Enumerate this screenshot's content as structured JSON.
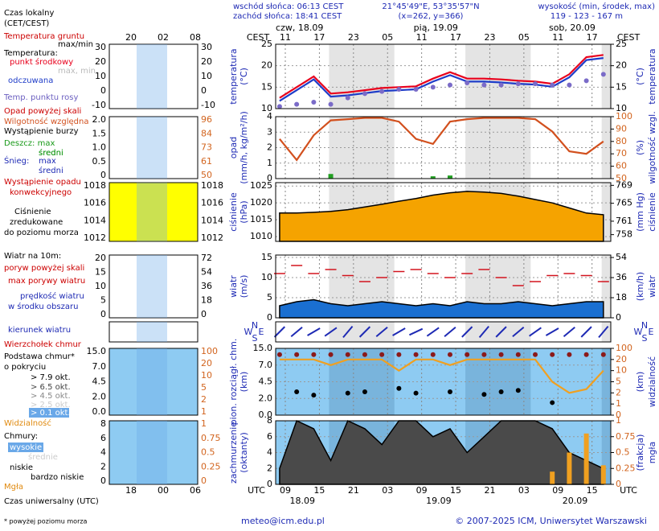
{
  "header": {
    "sunrise": "wschód słońca: 06:13 CEST",
    "sunset": "zachód słońca: 18:41 CEST",
    "coords": "21°45'49\"E, 53°35'57\"N",
    "grid": "(x=262, y=366)",
    "height_title": "wysokość (min, środek, max)",
    "height": "119 - 123 - 167 m"
  },
  "time_axis": {
    "top_label": "CEST",
    "bottom_label": "UTC",
    "xlim": [
      7.3,
      66.3
    ],
    "x": [
      8,
      11,
      14,
      17,
      20,
      23,
      26,
      29,
      32,
      35,
      38,
      41,
      44,
      47,
      50,
      53,
      56,
      59,
      62,
      65
    ],
    "utc_ticks": [
      {
        "value": 9,
        "label": "09"
      },
      15,
      21,
      {
        "value": 27,
        "label": "03"
      },
      {
        "value": 33,
        "label": "09"
      },
      {
        "value": 39,
        "label": "15"
      },
      {
        "value": 45,
        "label": "21"
      },
      {
        "value": 51,
        "label": "03"
      },
      {
        "value": 57,
        "label": "09"
      },
      {
        "value": 63,
        "label": "15"
      }
    ],
    "cest_ticks": [
      {
        "value": 9,
        "label": "11"
      },
      {
        "value": 15,
        "label": "17"
      },
      {
        "value": 21,
        "label": "23"
      },
      {
        "value": 27,
        "label": "05"
      },
      {
        "value": 33,
        "label": "11"
      },
      {
        "value": 39,
        "label": "17"
      },
      {
        "value": 45,
        "label": "23"
      },
      {
        "value": 51,
        "label": "05"
      },
      {
        "value": 57,
        "label": "11"
      },
      {
        "value": 63,
        "label": "17"
      }
    ],
    "days": [
      "czw, 18.09",
      "pią, 19.09",
      "sob, 20.09"
    ],
    "dates": [
      "18.09",
      "19.09",
      "20.09"
    ]
  },
  "chart_data": [
    {
      "type": "line",
      "ylabel": [
        "temperatura",
        "(°C)"
      ],
      "y2label": [
        "temperatura",
        "(°C)"
      ],
      "background": "#ffffff",
      "ylim": [
        10,
        25
      ],
      "yticks": [
        10,
        15,
        20,
        25
      ],
      "y2lim": [
        10,
        25
      ],
      "y2ticks": [
        10,
        15,
        20,
        25
      ],
      "series": [
        {
          "name": "punkt środkowy",
          "color": "#e8001c",
          "kind": "line",
          "values": [
            12.5,
            15,
            17.5,
            13.5,
            13.8,
            14.3,
            14.8,
            15,
            15.2,
            17,
            18.5,
            17,
            17,
            16.8,
            16.5,
            16.3,
            15.8,
            18,
            22,
            22.5
          ]
        },
        {
          "name": "odczuwana",
          "color": "#1e3cc8",
          "kind": "line",
          "values": [
            11.8,
            14.3,
            16.8,
            12.8,
            13.1,
            13.6,
            14.1,
            14.3,
            14.5,
            16.3,
            17.8,
            16.3,
            16.3,
            16.1,
            15.8,
            15.6,
            15.1,
            17.3,
            21.3,
            21.8
          ]
        },
        {
          "name": "Temp. punktu rosy",
          "color": "#7a6bc8",
          "kind": "dots",
          "values": [
            10.5,
            11,
            11.5,
            11,
            12.5,
            13.5,
            14,
            14.5,
            14.5,
            15,
            15.5,
            16,
            15.5,
            15.5,
            15.8,
            15.8,
            15.5,
            15.5,
            16.5,
            18
          ]
        }
      ]
    },
    {
      "type": "line",
      "ylabel": [
        "opad",
        "(mm/h, kg/m²/h)"
      ],
      "y2label": [
        "wilgotność wzgl.",
        "(%)"
      ],
      "background": "#ffffff",
      "ylim": [
        0,
        4
      ],
      "yticks": [
        0,
        1,
        2,
        3,
        4
      ],
      "y2lim": [
        50,
        100
      ],
      "y2ticks": [
        50,
        60,
        70,
        80,
        90,
        100
      ],
      "series": [
        {
          "name": "Wilgotność względna",
          "color": "#d2501e",
          "kind": "line",
          "axis": "y2",
          "values": [
            82,
            65,
            85,
            97,
            98,
            99,
            99,
            96,
            82,
            78,
            96,
            98,
            99,
            99,
            99,
            98,
            88,
            72,
            70,
            80
          ]
        },
        {
          "name": "średni",
          "color": "#22a022",
          "kind": "bars",
          "values": [
            0,
            0,
            0,
            0.3,
            0,
            0,
            0,
            0,
            0,
            0.15,
            0.2,
            0,
            0,
            0,
            0,
            0,
            0,
            0,
            0,
            0
          ]
        }
      ]
    },
    {
      "type": "line",
      "ylabel": [
        "ciśnienie",
        "(hPa)"
      ],
      "y2label": [
        "ciśnienie",
        "(mm Hg)"
      ],
      "background": "#ffffff",
      "ylim": [
        1008.6,
        1026
      ],
      "yticks": [
        1010,
        1015,
        1020,
        1025
      ],
      "y2lim": [
        756.5,
        769.6
      ],
      "y2ticks": [
        758,
        761,
        765,
        769
      ],
      "series": [
        {
          "color": "#f5a300",
          "kind": "area",
          "values": [
            1017,
            1017,
            1017.2,
            1017.5,
            1018,
            1018.8,
            1019.6,
            1020.5,
            1021.3,
            1022.3,
            1023,
            1023.4,
            1023.2,
            1022.8,
            1022,
            1021,
            1020,
            1018.5,
            1017,
            1016.5
          ]
        }
      ]
    },
    {
      "type": "line",
      "ylabel": [
        "wiatr",
        "(m/s)"
      ],
      "y2label": [
        "wiatr",
        "(km/h)"
      ],
      "background": "#ffffff",
      "ylim": [
        0,
        15.6
      ],
      "yticks": [
        0,
        5,
        10,
        15
      ],
      "y2lim": [
        0,
        56.2
      ],
      "y2ticks": [
        0,
        18,
        36,
        54
      ],
      "series": [
        {
          "name": "max porywy wiatru",
          "color": "#d2141e",
          "kind": "dashes",
          "values": [
            11,
            13,
            11,
            12,
            10.5,
            9,
            10,
            11.5,
            12,
            11,
            10,
            11,
            12,
            10,
            8,
            9,
            10.5,
            11,
            10.5,
            9
          ]
        },
        {
          "name": "prędkość wiatru",
          "color": "#1a6fd1",
          "kind": "area",
          "values": [
            3,
            4,
            4.5,
            3.5,
            3,
            3.5,
            4,
            3.5,
            3,
            3.5,
            3,
            4,
            3.5,
            3.5,
            4,
            3.5,
            3,
            3.5,
            4,
            4
          ]
        }
      ]
    },
    {
      "type": "arrows",
      "compass": [
        "W",
        "N",
        "E",
        "S"
      ],
      "color": "#1e2ab4",
      "values": [
        225,
        230,
        240,
        235,
        220,
        225,
        230,
        240,
        245,
        235,
        230,
        225,
        220,
        225,
        230,
        235,
        240,
        230,
        225,
        220
      ]
    },
    {
      "type": "line",
      "ylabel": [
        "pion. rozciągł. chm.",
        "(km)"
      ],
      "y2label": [
        "widzialność",
        "(km)"
      ],
      "background": "#8ecbf2",
      "yscale": "ticks",
      "ylim": [
        0,
        15
      ],
      "yticks": [
        {
          "value": 0,
          "label": "0.0"
        },
        {
          "value": 2,
          "label": "2.0"
        },
        4.5,
        {
          "value": 7,
          "label": "7.0"
        },
        {
          "value": 15,
          "label": "15.0"
        }
      ],
      "y2lim": [
        0,
        100
      ],
      "y2ticks": [
        0,
        1,
        2,
        5,
        10,
        20,
        100
      ],
      "series": [
        {
          "name": "Wierzchołek chmur",
          "color": "#8b1a1a",
          "kind": "dots",
          "values": [
            12,
            12,
            12,
            12,
            12,
            12,
            12,
            12,
            12,
            12,
            12,
            12,
            12,
            12,
            12,
            12,
            12,
            12,
            12,
            12
          ]
        },
        {
          "name": "> 7.9 okt.",
          "color": "#000000",
          "kind": "dots",
          "values": [
            null,
            3,
            2.5,
            null,
            2.8,
            3,
            null,
            3.5,
            2.8,
            null,
            3,
            null,
            2.6,
            3,
            3.2,
            null,
            1.5,
            null,
            null,
            null
          ]
        },
        {
          "name": "Widzialność",
          "color": "#f0a020",
          "kind": "line",
          "axis": "y2",
          "values": [
            20,
            20,
            20,
            15,
            20,
            20,
            20,
            10,
            20,
            20,
            15,
            20,
            20,
            20,
            20,
            20,
            5,
            2,
            3,
            10
          ]
        }
      ]
    },
    {
      "type": "line",
      "ylabel": [
        "zachmurzenie",
        "(oktanty)"
      ],
      "y2label": [
        "mgła",
        "(frakcja)"
      ],
      "background": "#8ecbf2",
      "ylim": [
        0,
        8
      ],
      "yticks": [
        0,
        2,
        4,
        6,
        8
      ],
      "y2lim": [
        0,
        1
      ],
      "y2ticks": [
        0,
        0.25,
        0.5,
        0.75,
        1
      ],
      "series": [
        {
          "color": "#4a4a4a",
          "kind": "area",
          "values": [
            2,
            8,
            7,
            3,
            8,
            7,
            5,
            8,
            8,
            6,
            7,
            4,
            6,
            8,
            8,
            8,
            7,
            4,
            3,
            2
          ]
        },
        {
          "name": "Mgła",
          "color": "#f0a020",
          "kind": "bars",
          "axis": "y2",
          "values": [
            0,
            0,
            0,
            0,
            0,
            0,
            0,
            0,
            0,
            0,
            0,
            0,
            0,
            0,
            0,
            0,
            0.2,
            0.5,
            0.8,
            0.3
          ]
        }
      ]
    }
  ],
  "left_legend": [
    "Czas lokalny",
    "(CET/CEST)",
    "Temperatura gruntu",
    "max/min",
    "Temperatura:",
    "max, min",
    "Opad powyżej skali",
    "Wystąpienie burzy",
    "Deszcz: max",
    "średni",
    "Śnieg:",
    "max",
    "średni",
    "Wystąpienie opadu",
    "konwekcyjnego",
    "Ciśnienie",
    "zredukowane",
    "do poziomu morza",
    "Wiatr na 10m:",
    "poryw powyżej skali",
    "w środku obszaru",
    "kierunek wiatru",
    "Podstawa chmur*",
    "o pokryciu",
    "> 6.5 okt.",
    "> 4.5 okt.",
    "> 2.5 okt.",
    "> 0.1 okt.",
    "Chmury:",
    "wysokie",
    "średnie",
    "niskie",
    "bardzo niskie",
    "Czas uniwersalny (UTC)"
  ],
  "left_panels": {
    "top_ticks": [
      "20",
      "02",
      "08"
    ],
    "bottom_ticks": [
      "18",
      "00",
      "06"
    ],
    "panels": [
      {
        "left": [
          "30",
          "20",
          "10",
          "0",
          "-10"
        ],
        "right": [
          "30",
          "20",
          "10",
          "0",
          "-10"
        ]
      },
      {
        "left": [
          "2.0",
          "1.5",
          "1.0",
          "0.5",
          "0"
        ],
        "right": [
          "96",
          "84",
          "73",
          "61",
          "50"
        ]
      },
      {
        "left": [
          "1018",
          "1016",
          "1014",
          "1012"
        ],
        "right": [
          "1018",
          "1016",
          "1014",
          "1012"
        ]
      },
      {
        "left": [
          "20",
          "15",
          "10",
          "5",
          "0"
        ],
        "right": [
          "72",
          "54",
          "36",
          "18",
          "0"
        ]
      },
      {
        "left": [],
        "right": []
      },
      {
        "left": [
          "15.0",
          "7.0",
          "4.5",
          "2.0",
          "0.0"
        ],
        "right": [
          "100",
          "20",
          "10",
          "5",
          "2",
          "1"
        ]
      },
      {
        "left": [
          "8",
          "6",
          "4",
          "2",
          "0"
        ],
        "right": [
          "1",
          "0.75",
          "0.5",
          "0.25",
          "0"
        ]
      }
    ]
  },
  "footer": {
    "note": "* powyżej poziomu morza",
    "email": "meteo@icm.edu.pl",
    "copyright": "© 2007-2025 ICM, Uniwersytet Warszawski"
  }
}
